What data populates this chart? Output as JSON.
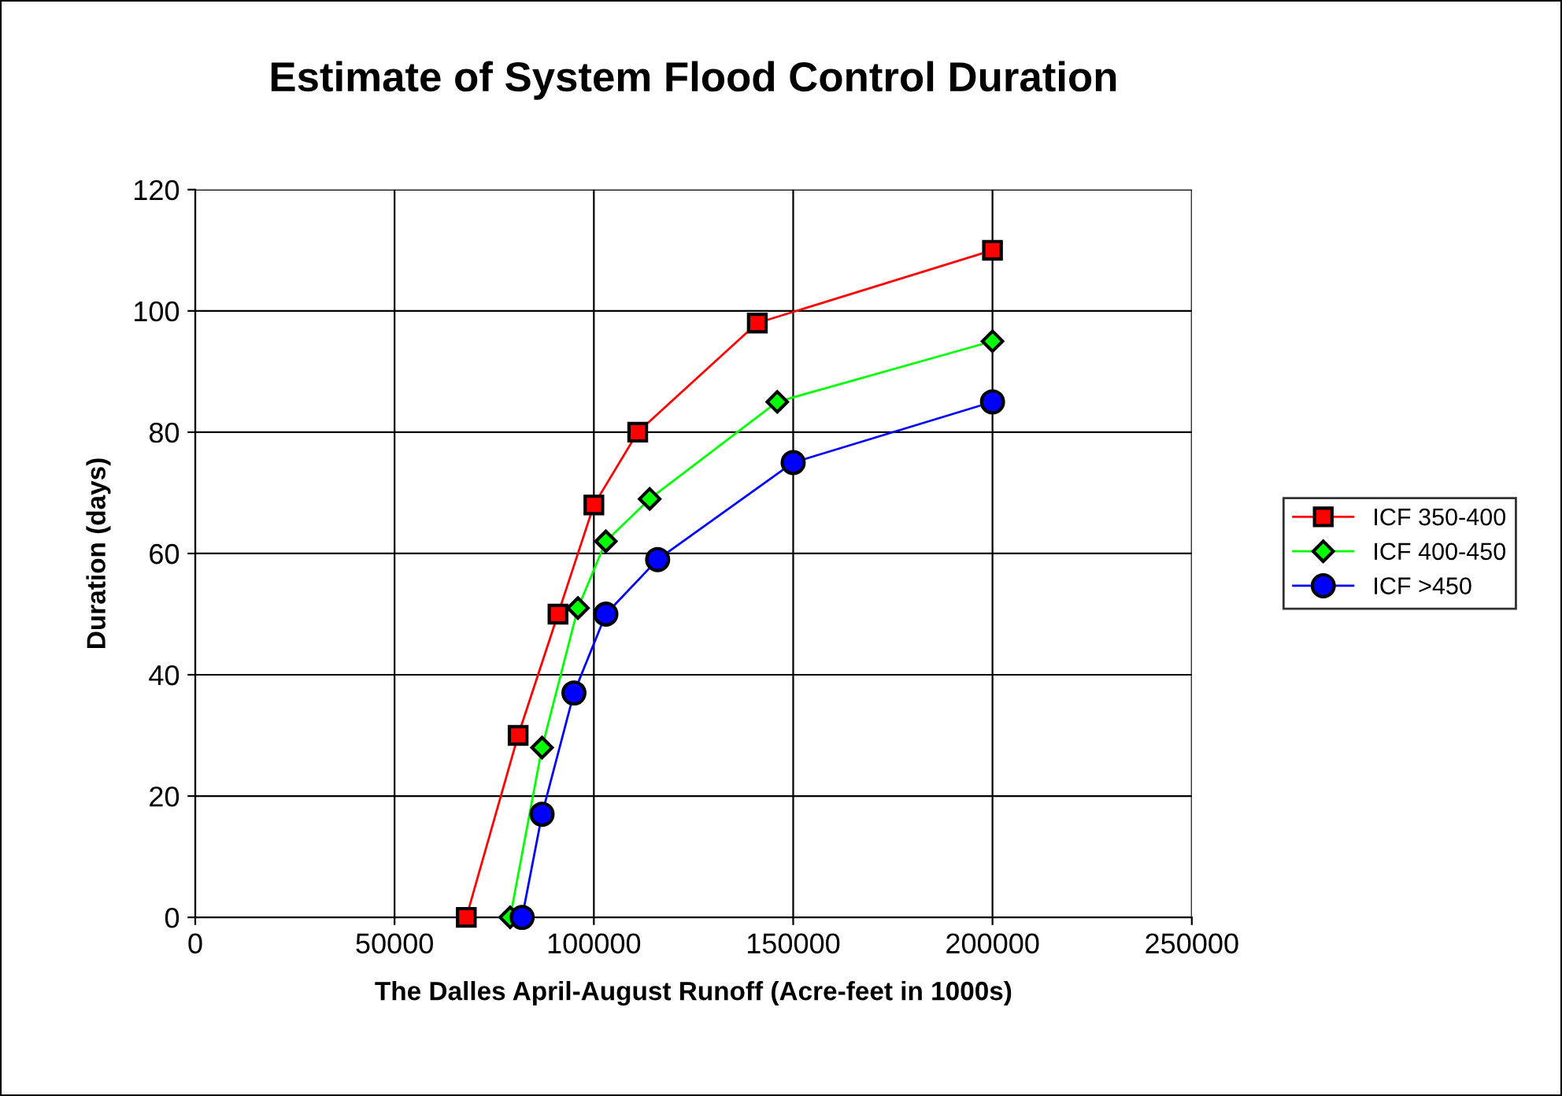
{
  "chart_data": {
    "type": "line",
    "title": "Estimate of System Flood Control Duration",
    "xlabel": "The Dalles April-August Runoff (Acre-feet in 1000s)",
    "ylabel": "Duration (days)",
    "xlim": [
      0,
      250000
    ],
    "xticks": [
      0,
      50000,
      100000,
      150000,
      200000,
      250000
    ],
    "ylim": [
      0,
      120
    ],
    "yticks": [
      0,
      20,
      40,
      60,
      80,
      100,
      120
    ],
    "grid": true,
    "legend": "right",
    "series": [
      {
        "name": "ICF 350-400",
        "color": "#ff0000",
        "marker": "square",
        "x": [
          68000,
          81000,
          91000,
          100000,
          111000,
          141000,
          200000
        ],
        "values": [
          0,
          30,
          50,
          68,
          80,
          98,
          110
        ]
      },
      {
        "name": "ICF 400-450",
        "color": "#00ff00",
        "marker": "diamond",
        "x": [
          79000,
          87000,
          96000,
          103000,
          114000,
          146000,
          200000
        ],
        "values": [
          0,
          28,
          51,
          62,
          69,
          85,
          95
        ]
      },
      {
        "name": "ICF >450",
        "color": "#0000ff",
        "marker": "circle",
        "x": [
          82000,
          87000,
          95000,
          103000,
          116000,
          150000,
          200000
        ],
        "values": [
          0,
          17,
          37,
          50,
          59,
          75,
          85
        ]
      }
    ]
  }
}
